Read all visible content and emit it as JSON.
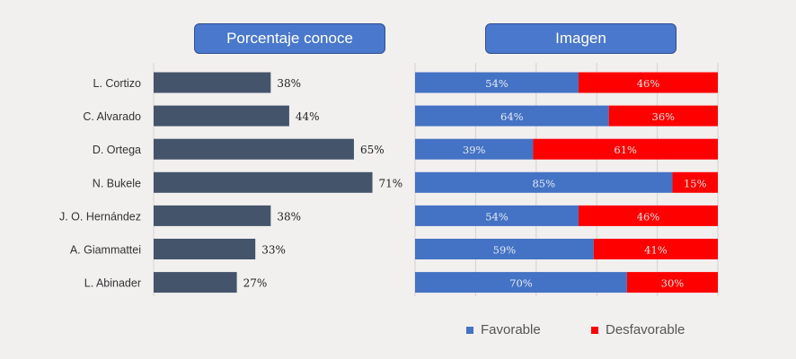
{
  "title_left": "Porcentaje conoce",
  "title_right": "Imagen",
  "legend": {
    "favorable": "Favorable",
    "desfavorable": "Desfavorable"
  },
  "colors": {
    "bar": "#44546a",
    "favorable": "#4472c4",
    "desfavorable": "#ff0000",
    "title_bg": "#4a78cc"
  },
  "chart_data": [
    {
      "type": "bar",
      "orientation": "horizontal",
      "title": "Porcentaje conoce",
      "categories": [
        "L. Cortizo",
        "C. Alvarado",
        "D. Ortega",
        "N. Bukele",
        "J. O. Hernández",
        "A. Giammattei",
        "L. Abinader"
      ],
      "values": [
        38,
        44,
        65,
        71,
        38,
        33,
        27
      ],
      "value_labels": [
        "38%",
        "44%",
        "65%",
        "71%",
        "38%",
        "33%",
        "27%"
      ],
      "xlim": [
        0,
        100
      ],
      "grid": false
    },
    {
      "type": "bar",
      "orientation": "horizontal",
      "stacked": "percent",
      "title": "Imagen",
      "categories": [
        "L. Cortizo",
        "C. Alvarado",
        "D. Ortega",
        "N. Bukele",
        "J. O. Hernández",
        "A. Giammattei",
        "L. Abinader"
      ],
      "series": [
        {
          "name": "Favorable",
          "values": [
            54,
            64,
            39,
            85,
            54,
            59,
            70
          ],
          "labels": [
            "54%",
            "64%",
            "39%",
            "85%",
            "54%",
            "59%",
            "70%"
          ]
        },
        {
          "name": "Desfavorable",
          "values": [
            46,
            36,
            61,
            15,
            46,
            41,
            30
          ],
          "labels": [
            "46%",
            "36%",
            "61%",
            "15%",
            "46%",
            "41%",
            "30%"
          ]
        }
      ],
      "xlim": [
        0,
        100
      ],
      "legend_position": "bottom",
      "grid": true
    }
  ]
}
